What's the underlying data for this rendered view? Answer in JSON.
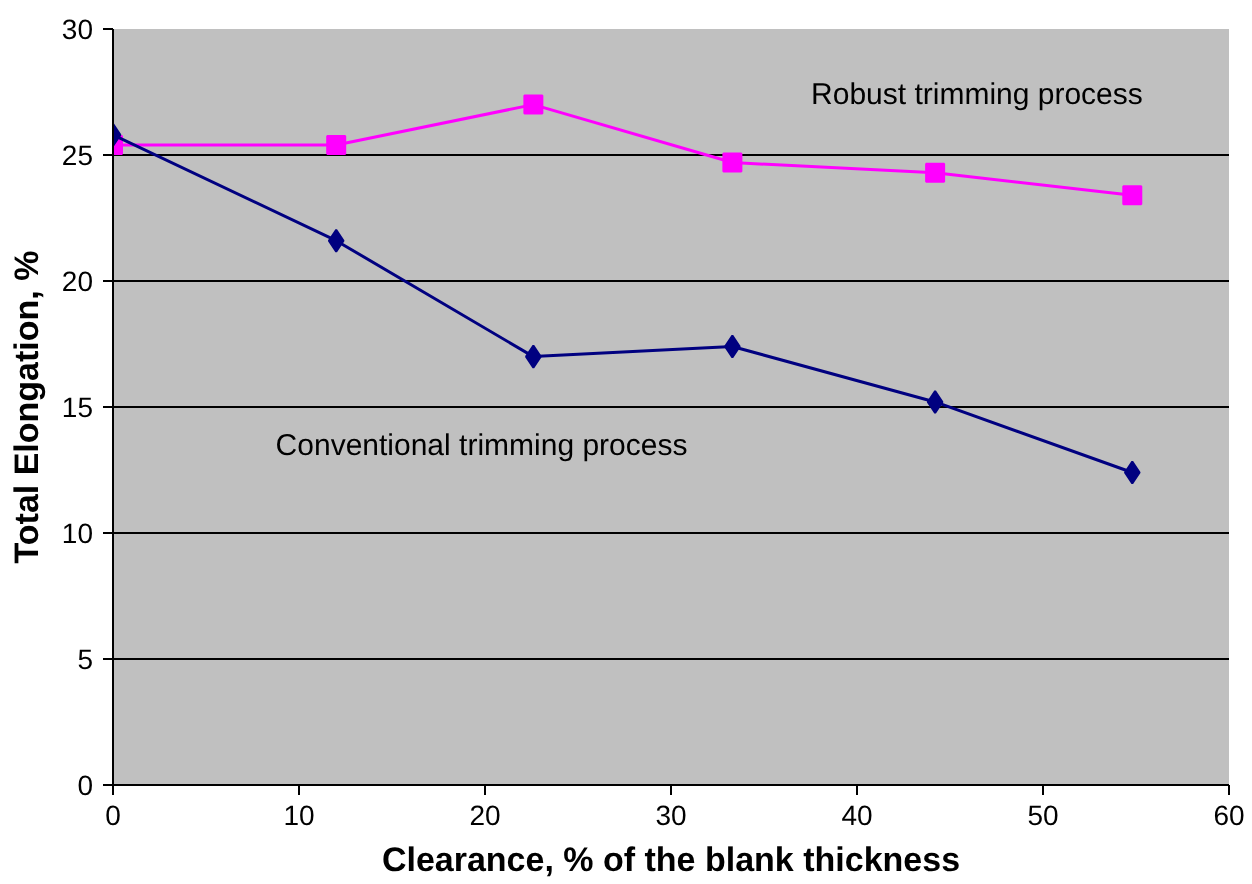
{
  "chart_data": {
    "type": "line",
    "xlabel": "Clearance, % of the blank thickness",
    "ylabel": "Total Elongation, %",
    "series": [
      {
        "name": "Robust trimming process",
        "color": "#ff00ff",
        "marker": "square",
        "x": [
          0,
          12.0,
          22.6,
          33.3,
          44.2,
          54.8
        ],
        "values": [
          25.4,
          25.4,
          27.0,
          24.7,
          24.3,
          23.4
        ]
      },
      {
        "name": "Conventional trimming process",
        "color": "#000080",
        "marker": "diamond",
        "x": [
          0,
          12.0,
          22.6,
          33.3,
          44.2,
          54.8
        ],
        "values": [
          25.8,
          21.6,
          17.0,
          17.4,
          15.2,
          12.4
        ]
      }
    ],
    "xlim": [
      0,
      60
    ],
    "xticks": [
      0,
      10,
      20,
      30,
      40,
      50,
      60
    ],
    "ylim": [
      0,
      30
    ],
    "yticks": [
      0,
      5,
      10,
      15,
      20,
      25,
      30
    ],
    "grid": "y"
  }
}
